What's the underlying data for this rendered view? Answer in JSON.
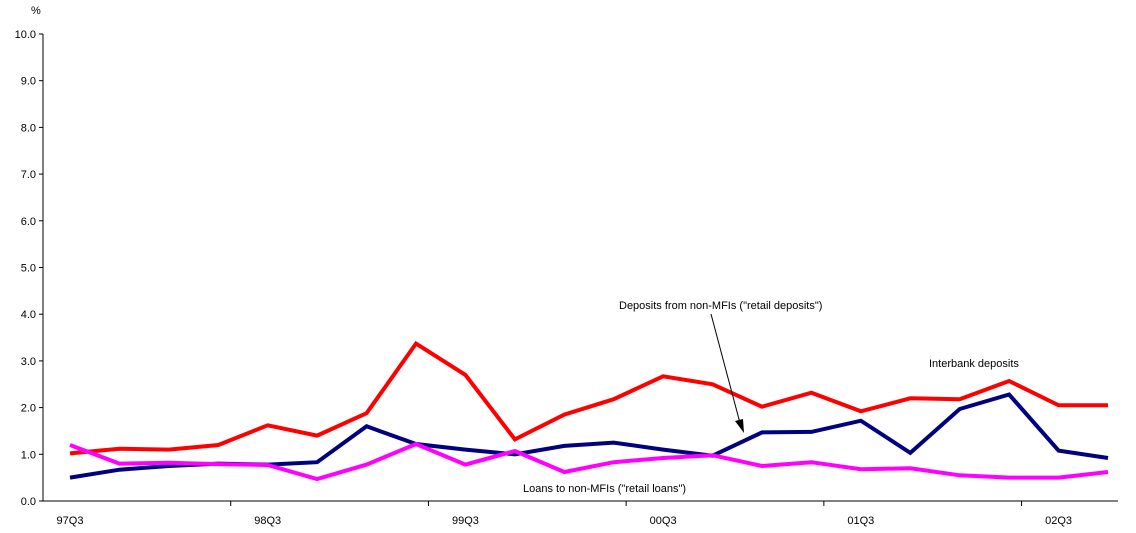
{
  "chart_data": {
    "type": "line",
    "y_unit_label": "%",
    "ylim": [
      0,
      10
    ],
    "y_ticks": [
      "0.0",
      "1.0",
      "2.0",
      "3.0",
      "4.0",
      "5.0",
      "6.0",
      "7.0",
      "8.0",
      "9.0",
      "10.0"
    ],
    "x": [
      "97Q3",
      "97Q4",
      "98Q1",
      "98Q2",
      "98Q3",
      "98Q4",
      "99Q1",
      "99Q2",
      "99Q3",
      "99Q4",
      "00Q1",
      "00Q2",
      "00Q3",
      "00Q4",
      "01Q1",
      "01Q2",
      "01Q3",
      "01Q4",
      "02Q1",
      "02Q2",
      "02Q3",
      "02Q4"
    ],
    "x_tick_labels": [
      "97Q3",
      "98Q3",
      "99Q3",
      "00Q3",
      "01Q3",
      "02Q3"
    ],
    "grid": false,
    "series": [
      {
        "name": "Interbank deposits",
        "color": "#ff0000",
        "values": [
          1.02,
          1.12,
          1.1,
          1.2,
          1.62,
          1.4,
          1.88,
          3.37,
          2.7,
          1.32,
          1.85,
          2.18,
          2.67,
          2.5,
          2.02,
          2.32,
          1.92,
          2.2,
          2.18,
          2.57,
          2.05,
          2.05
        ]
      },
      {
        "name": "Deposits from non-MFIs (\"retail deposits\")",
        "color": "#000080",
        "values": [
          0.5,
          0.67,
          0.75,
          0.8,
          0.78,
          0.83,
          1.6,
          1.22,
          1.1,
          1.0,
          1.18,
          1.25,
          1.1,
          0.97,
          1.47,
          1.48,
          1.72,
          1.03,
          1.97,
          2.28,
          1.08,
          0.92
        ]
      },
      {
        "name": "Loans to non-MFIs (\"retail loans\")",
        "color": "#ff00ff",
        "values": [
          1.2,
          0.8,
          0.82,
          0.79,
          0.77,
          0.47,
          0.78,
          1.22,
          0.78,
          1.07,
          0.62,
          0.83,
          0.92,
          0.98,
          0.75,
          0.83,
          0.68,
          0.7,
          0.55,
          0.5,
          0.5,
          0.62
        ]
      }
    ]
  }
}
